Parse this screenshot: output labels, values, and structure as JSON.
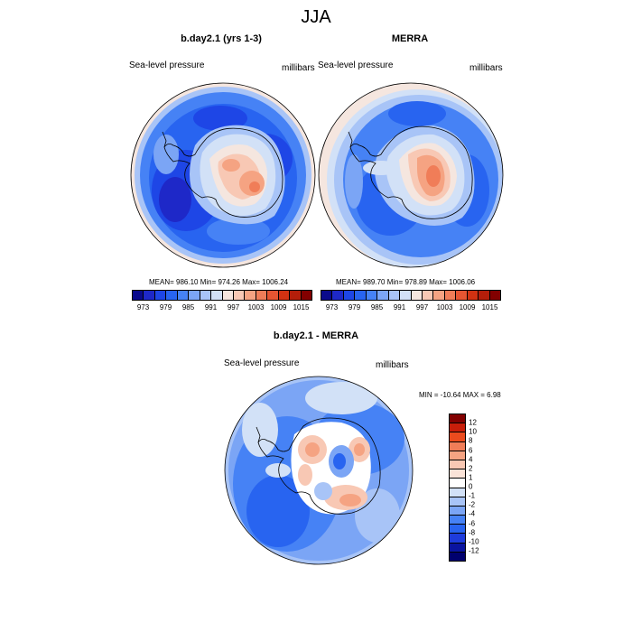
{
  "figure": {
    "title": "JJA"
  },
  "panel1": {
    "title": "b.day2.1 (yrs 1-3)",
    "left_label": "Sea-level pressure",
    "right_label": "millibars",
    "stats": "MEAN= 986.10  Min= 974.26  Max= 1006.24"
  },
  "panel2": {
    "title": "MERRA",
    "left_label": "Sea-level pressure",
    "right_label": "millibars",
    "stats": "MEAN= 989.70  Min= 978.89  Max= 1006.06"
  },
  "panel3": {
    "title": "b.day2.1 - MERRA",
    "left_label": "Sea-level pressure",
    "right_label": "millibars",
    "stats": "MIN = -10.64 MAX =   6.98"
  },
  "colorbar_abs": {
    "labels": [
      "973",
      "979",
      "985",
      "991",
      "997",
      "1003",
      "1009",
      "1015"
    ],
    "colors": [
      "#0a0a8c",
      "#1e28c8",
      "#1e46e6",
      "#2864f0",
      "#4682f5",
      "#7ba5f5",
      "#a8c4f7",
      "#d2e1f7",
      "#f5e6df",
      "#f8c8b4",
      "#f5a382",
      "#f07d58",
      "#e65532",
      "#d23212",
      "#b41e0a",
      "#820000"
    ]
  },
  "colorbar_diff": {
    "labels": [
      "12",
      "10",
      "8",
      "6",
      "4",
      "2",
      "1",
      "0",
      "-1",
      "-2",
      "-4",
      "-6",
      "-8",
      "-10",
      "-12"
    ],
    "colors": [
      "#820000",
      "#c81e0a",
      "#eb4b1e",
      "#f07d58",
      "#f5a382",
      "#f8c8b4",
      "#fae3d8",
      "#ffffff",
      "#d2e1f7",
      "#a8c4f7",
      "#7ba5f5",
      "#4682f5",
      "#2864f0",
      "#1e3cdc",
      "#0a14a0",
      "#00006e"
    ]
  }
}
